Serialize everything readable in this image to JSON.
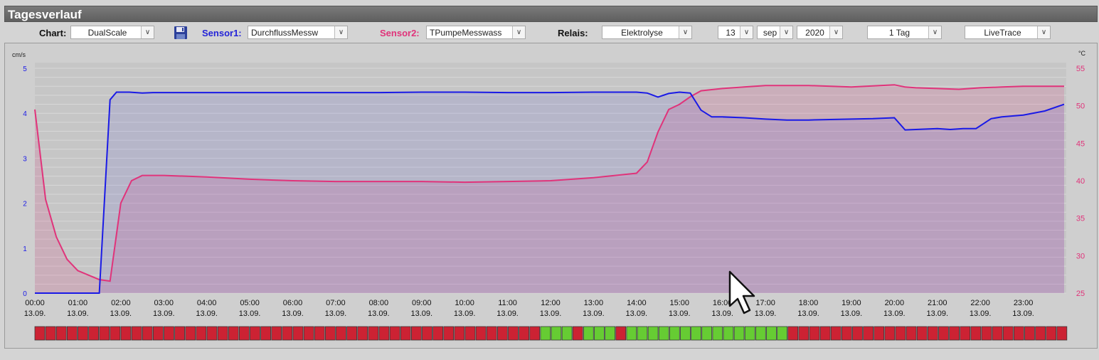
{
  "window": {
    "title": "Tagesverlauf"
  },
  "toolbar": {
    "chart_label": "Chart:",
    "chart_value": "DualScale",
    "sensor1_label": "Sensor1:",
    "sensor1_value": "DurchflussMessw",
    "sensor2_label": "Sensor2:",
    "sensor2_value": "TPumpeMesswass",
    "relais_label": "Relais:",
    "relais_value": "Elektrolyse",
    "day_value": "13",
    "month_value": "sep",
    "year_value": "2020",
    "range_value": "1 Tag",
    "mode_value": "LiveTrace"
  },
  "colors": {
    "sensor1": "#1a1ae6",
    "sensor2": "#e0337a",
    "relay_on": "#66cc33",
    "relay_off": "#cc2233",
    "chart_bg": "#c6c6c6"
  },
  "icons": {
    "save": "floppy-disk-icon",
    "cursor": "mouse-pointer-icon"
  },
  "chart_data": {
    "type": "line",
    "left_unit": "cm/s",
    "right_unit": "°C",
    "left_ticks": [
      "0",
      "1",
      "2",
      "3",
      "4",
      "5"
    ],
    "right_ticks": [
      "25",
      "30",
      "35",
      "40",
      "45",
      "50",
      "55"
    ],
    "ylim_left": [
      0,
      5
    ],
    "ylim_right": [
      25,
      55
    ],
    "xlim": [
      0,
      24
    ],
    "grid": true,
    "x_ticks": [
      "00:00",
      "01:00",
      "02:00",
      "03:00",
      "04:00",
      "05:00",
      "06:00",
      "07:00",
      "08:00",
      "09:00",
      "10:00",
      "11:00",
      "12:00",
      "13:00",
      "14:00",
      "15:00",
      "16:00",
      "17:00",
      "18:00",
      "19:00",
      "20:00",
      "21:00",
      "22:00",
      "23:00"
    ],
    "x_tick_date": "13.09.",
    "series": [
      {
        "name": "Sensor1",
        "axis": "left",
        "x": [
          0,
          1.5,
          1.75,
          1.9,
          2.2,
          2.5,
          2.75,
          3,
          4,
          5,
          6,
          7,
          8,
          9,
          10,
          11,
          12,
          13,
          14,
          14.25,
          14.5,
          14.75,
          15,
          15.25,
          15.5,
          15.75,
          16,
          16.5,
          17,
          17.5,
          18,
          18.5,
          19,
          19.5,
          20,
          20.25,
          20.5,
          21,
          21.3,
          21.6,
          21.9,
          22.25,
          22.5,
          23,
          23.5,
          23.95
        ],
        "y": [
          0,
          0,
          4.3,
          4.47,
          4.47,
          4.45,
          4.46,
          4.46,
          4.46,
          4.46,
          4.46,
          4.46,
          4.46,
          4.47,
          4.47,
          4.46,
          4.46,
          4.47,
          4.47,
          4.45,
          4.36,
          4.44,
          4.47,
          4.45,
          4.07,
          3.92,
          3.92,
          3.9,
          3.87,
          3.85,
          3.85,
          3.86,
          3.87,
          3.88,
          3.9,
          3.63,
          3.64,
          3.66,
          3.64,
          3.66,
          3.66,
          3.88,
          3.92,
          3.96,
          4.05,
          4.2
        ]
      },
      {
        "name": "Sensor2",
        "axis": "right",
        "x": [
          0,
          0.25,
          0.5,
          0.75,
          1,
          1.5,
          1.75,
          2,
          2.25,
          2.5,
          3,
          4,
          5,
          6,
          7,
          8,
          9,
          10,
          11,
          12,
          13,
          14,
          14.25,
          14.5,
          14.75,
          15,
          15.25,
          15.5,
          16,
          16.5,
          17,
          18,
          19,
          20,
          20.25,
          20.5,
          21,
          21.5,
          22,
          22.5,
          23,
          23.95
        ],
        "y": [
          49.5,
          37.5,
          32.5,
          29.5,
          28,
          26.8,
          26.6,
          37,
          40,
          40.7,
          40.7,
          40.5,
          40.2,
          40,
          39.9,
          39.9,
          39.9,
          39.8,
          39.9,
          40,
          40.4,
          41,
          42.5,
          46.5,
          49.5,
          50.2,
          51.2,
          52,
          52.3,
          52.5,
          52.7,
          52.7,
          52.5,
          52.8,
          52.5,
          52.4,
          52.3,
          52.2,
          52.4,
          52.5,
          52.6,
          52.6
        ]
      }
    ],
    "relay_cells": [
      "off",
      "off",
      "off",
      "off",
      "off",
      "off",
      "off",
      "off",
      "off",
      "off",
      "off",
      "off",
      "off",
      "off",
      "off",
      "off",
      "off",
      "off",
      "off",
      "off",
      "off",
      "off",
      "off",
      "off",
      "off",
      "off",
      "off",
      "off",
      "off",
      "off",
      "off",
      "off",
      "off",
      "off",
      "off",
      "off",
      "off",
      "off",
      "off",
      "off",
      "off",
      "off",
      "off",
      "off",
      "off",
      "off",
      "off",
      "on",
      "on",
      "on",
      "off",
      "on",
      "on",
      "on",
      "off",
      "on",
      "on",
      "on",
      "on",
      "on",
      "on",
      "on",
      "on",
      "on",
      "on",
      "on",
      "on",
      "on",
      "on",
      "on",
      "off",
      "off",
      "off",
      "off",
      "off",
      "off",
      "off",
      "off",
      "off",
      "off",
      "off",
      "off",
      "off",
      "off",
      "off",
      "off",
      "off",
      "off",
      "off",
      "off",
      "off",
      "off",
      "off",
      "off",
      "off",
      "off"
    ]
  }
}
